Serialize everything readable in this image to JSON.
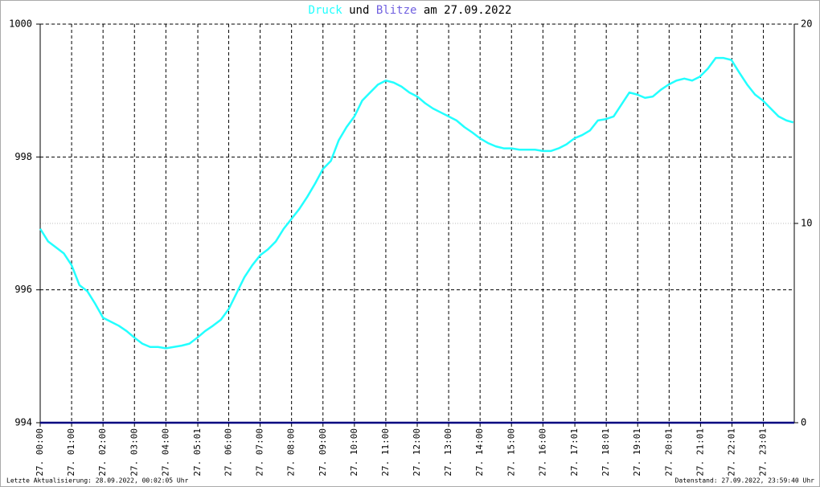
{
  "chart_data": {
    "type": "line",
    "title_parts": [
      "Druck",
      "und",
      "Blitze",
      "am 27.09.2022"
    ],
    "footer_left": "Letzte Aktualisierung: 28.09.2022, 00:02:05 Uhr",
    "footer_right": "Datenstand: 27.09.2022, 23:59:40 Uhr",
    "x": [
      0,
      0.25,
      0.5,
      0.75,
      1,
      1.25,
      1.5,
      1.75,
      2,
      2.25,
      2.5,
      2.75,
      3,
      3.25,
      3.5,
      3.75,
      4,
      4.25,
      4.5,
      4.75,
      5,
      5.25,
      5.5,
      5.75,
      6,
      6.25,
      6.5,
      6.75,
      7,
      7.25,
      7.5,
      7.75,
      8,
      8.25,
      8.5,
      8.75,
      9,
      9.25,
      9.5,
      9.75,
      10,
      10.25,
      10.5,
      10.75,
      11,
      11.25,
      11.5,
      11.75,
      12,
      12.25,
      12.5,
      12.75,
      13,
      13.25,
      13.5,
      13.75,
      14,
      14.25,
      14.5,
      14.75,
      15,
      15.25,
      15.5,
      15.75,
      16,
      16.25,
      16.5,
      16.75,
      17,
      17.25,
      17.5,
      17.75,
      18,
      18.25,
      18.5,
      18.75,
      19,
      19.25,
      19.5,
      19.75,
      20,
      20.25,
      20.5,
      20.75,
      21,
      21.25,
      21.5,
      21.75,
      22,
      22.25,
      22.5,
      22.75,
      23,
      23.25,
      23.5,
      23.75,
      23.97
    ],
    "series": [
      {
        "name": "Druck",
        "color": "#22ffff",
        "values": [
          996.92,
          996.73,
          996.64,
          996.55,
          996.37,
          996.07,
          995.98,
          995.79,
          995.58,
          995.52,
          995.46,
          995.38,
          995.28,
          995.19,
          995.14,
          995.14,
          995.12,
          995.14,
          995.16,
          995.19,
          995.28,
          995.38,
          995.46,
          995.55,
          995.71,
          995.95,
          996.19,
          996.37,
          996.52,
          996.61,
          996.73,
          996.92,
          997.07,
          997.22,
          997.4,
          997.6,
          997.82,
          997.94,
          998.25,
          998.45,
          998.61,
          998.85,
          998.97,
          999.09,
          999.15,
          999.12,
          999.06,
          998.97,
          998.91,
          998.81,
          998.73,
          998.67,
          998.61,
          998.55,
          998.45,
          998.37,
          998.28,
          998.21,
          998.16,
          998.13,
          998.13,
          998.11,
          998.11,
          998.11,
          998.09,
          998.09,
          998.13,
          998.19,
          998.28,
          998.33,
          998.4,
          998.55,
          998.57,
          998.61,
          998.79,
          998.97,
          998.94,
          998.89,
          998.91,
          999.01,
          999.09,
          999.15,
          999.18,
          999.15,
          999.21,
          999.33,
          999.49,
          999.49,
          999.46,
          999.27,
          999.09,
          998.94,
          998.85,
          998.73,
          998.61,
          998.55,
          998.52
        ]
      },
      {
        "name": "Blitze",
        "color": "#7060e0",
        "line_color": "#000080",
        "axis": "y2",
        "x": [
          0,
          24
        ],
        "values": [
          0,
          0
        ]
      }
    ],
    "xlim": [
      0,
      24
    ],
    "xticks": [
      {
        "value": 0,
        "label": "27. 00:00"
      },
      {
        "value": 1,
        "label": "27. 01:00"
      },
      {
        "value": 2,
        "label": "27. 02:00"
      },
      {
        "value": 3,
        "label": "27. 03:00"
      },
      {
        "value": 4,
        "label": "27. 04:00"
      },
      {
        "value": 5.0167,
        "label": "27. 05:01"
      },
      {
        "value": 6,
        "label": "27. 06:00"
      },
      {
        "value": 7,
        "label": "27. 07:00"
      },
      {
        "value": 8,
        "label": "27. 08:00"
      },
      {
        "value": 9,
        "label": "27. 09:00"
      },
      {
        "value": 10,
        "label": "27. 10:00"
      },
      {
        "value": 11,
        "label": "27. 11:00"
      },
      {
        "value": 12,
        "label": "27. 12:00"
      },
      {
        "value": 13,
        "label": "27. 13:00"
      },
      {
        "value": 14,
        "label": "27. 14:00"
      },
      {
        "value": 15,
        "label": "27. 15:00"
      },
      {
        "value": 16,
        "label": "27. 16:00"
      },
      {
        "value": 17.0167,
        "label": "27. 17:01"
      },
      {
        "value": 18.0167,
        "label": "27. 18:01"
      },
      {
        "value": 19.0167,
        "label": "27. 19:01"
      },
      {
        "value": 20.0167,
        "label": "27. 20:01"
      },
      {
        "value": 21.0167,
        "label": "27. 21:01"
      },
      {
        "value": 22.0167,
        "label": "27. 22:01"
      },
      {
        "value": 23.0167,
        "label": "27. 23:01"
      }
    ],
    "ylim": [
      994,
      1000
    ],
    "yticks": [
      994,
      996,
      998,
      1000
    ],
    "y2lim": [
      0,
      20
    ],
    "y2ticks": [
      0,
      10,
      20
    ],
    "grid": true
  }
}
